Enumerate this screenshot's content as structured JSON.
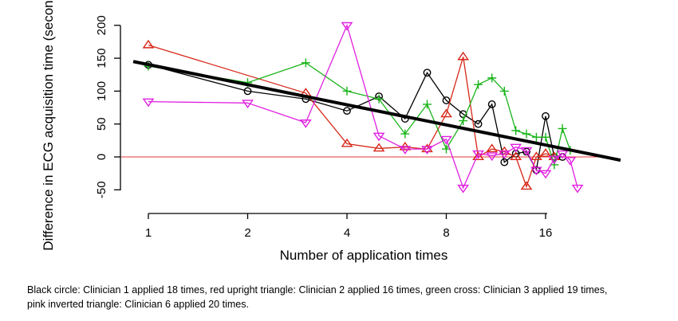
{
  "chart_data": {
    "type": "line",
    "title": "",
    "xlabel": "Number of application times",
    "ylabel": "Difference in ECG acquisition time (second)",
    "x_scale": "log2",
    "xlim": [
      0.9,
      27
    ],
    "ylim": [
      -60,
      200
    ],
    "x_ticks": [
      1,
      2,
      4,
      8,
      16
    ],
    "x_tick_labels": [
      "1",
      "2",
      "4",
      "8",
      "16"
    ],
    "y_ticks": [
      -50,
      0,
      50,
      100,
      150,
      200
    ],
    "y_tick_labels": [
      "-50",
      "0",
      "50",
      "100",
      "150",
      "200"
    ],
    "grid": false,
    "reference_line": {
      "y": 0,
      "color": "#e53935"
    },
    "trend_line": {
      "x": [
        0.9,
        27
      ],
      "y": [
        145,
        -5
      ],
      "color": "#000000"
    },
    "series": [
      {
        "color": "#000000",
        "marker": "circle",
        "x": [
          1,
          2,
          3,
          4,
          5,
          6,
          7,
          8,
          9,
          10,
          11,
          12,
          13,
          14,
          15,
          16,
          17,
          18
        ],
        "y": [
          140,
          100,
          88,
          70,
          92,
          58,
          128,
          86,
          65,
          50,
          80,
          -8,
          5,
          8,
          -20,
          62,
          0,
          0
        ]
      },
      {
        "color": "#d62718",
        "marker": "triangle-up",
        "x": [
          1,
          3,
          4,
          5,
          6,
          7,
          8,
          9,
          10,
          11,
          12,
          13,
          14,
          15,
          16,
          17
        ],
        "y": [
          170,
          97,
          20,
          13,
          15,
          12,
          65,
          152,
          0,
          12,
          8,
          0,
          -45,
          0,
          5,
          0
        ]
      },
      {
        "color": "#18b418",
        "marker": "cross",
        "x": [
          1,
          2,
          3,
          4,
          5,
          6,
          7,
          8,
          9,
          10,
          11,
          12,
          13,
          14,
          15,
          16,
          17,
          18,
          19
        ],
        "y": [
          138,
          113,
          143,
          100,
          88,
          35,
          80,
          12,
          55,
          110,
          120,
          100,
          40,
          35,
          30,
          30,
          -12,
          43,
          10
        ]
      },
      {
        "color": "#e020e0",
        "marker": "triangle-down",
        "x": [
          1,
          2,
          3,
          4,
          5,
          6,
          7,
          8,
          9,
          10,
          11,
          12,
          13,
          14,
          15,
          16,
          17,
          18,
          19,
          20
        ],
        "y": [
          84,
          82,
          52,
          200,
          32,
          12,
          12,
          27,
          -47,
          5,
          2,
          5,
          15,
          10,
          -20,
          -25,
          -3,
          5,
          -5,
          -47
        ]
      }
    ]
  },
  "caption": {
    "line1": "Black circle: Clinician 1 applied 18 times, red upright triangle: Clinician 2 applied 16 times, green cross: Clinician 3 applied 19 times,",
    "line2": "pink inverted triangle: Clinician 6 applied 20 times."
  }
}
